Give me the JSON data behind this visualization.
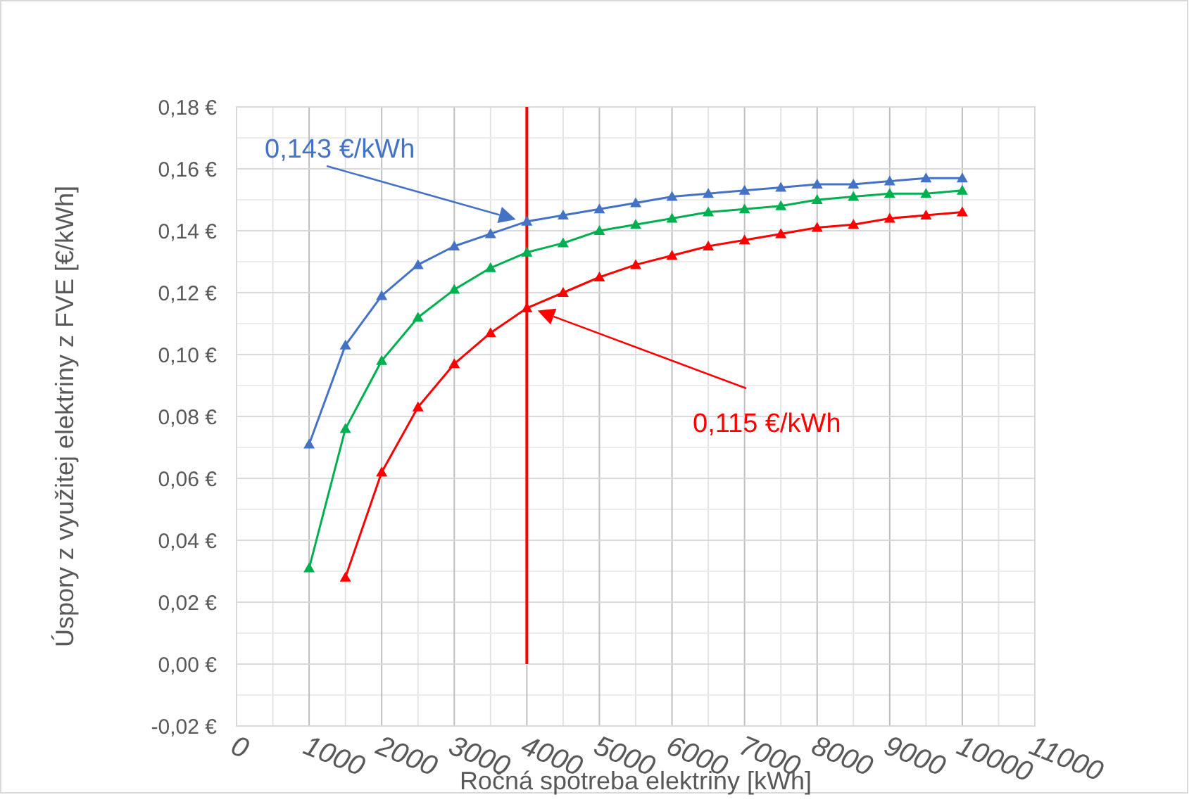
{
  "chart_data": {
    "type": "line",
    "xlabel": "Ročná spotreba elektriny [kWh]",
    "ylabel": "Úspory z využitej elektriny z FVE [€/kWh]",
    "x": [
      1000,
      1500,
      2000,
      2500,
      3000,
      3500,
      4000,
      4500,
      5000,
      5500,
      6000,
      6500,
      7000,
      7500,
      8000,
      8500,
      9000,
      9500,
      10000
    ],
    "series": [
      {
        "color": "#ff0000",
        "values": [
          null,
          0.028,
          0.062,
          0.083,
          0.097,
          0.107,
          0.115,
          0.12,
          0.125,
          0.129,
          0.132,
          0.135,
          0.137,
          0.139,
          0.141,
          0.142,
          0.144,
          0.145,
          0.146
        ]
      },
      {
        "color": "#00b050",
        "values": [
          0.031,
          0.076,
          0.098,
          0.112,
          0.121,
          0.128,
          0.133,
          0.136,
          0.14,
          0.142,
          0.144,
          0.146,
          0.147,
          0.148,
          0.15,
          0.151,
          0.152,
          0.152,
          0.153
        ]
      },
      {
        "color": "#4472c4",
        "values": [
          0.071,
          0.103,
          0.119,
          0.129,
          0.135,
          0.139,
          0.143,
          0.145,
          0.147,
          0.149,
          0.151,
          0.152,
          0.153,
          0.154,
          0.155,
          0.155,
          0.156,
          0.157,
          0.157
        ]
      }
    ],
    "xlim": [
      0,
      11000
    ],
    "xticks": [
      0,
      1000,
      2000,
      3000,
      4000,
      5000,
      6000,
      7000,
      8000,
      9000,
      10000,
      11000
    ],
    "ylim": [
      -0.02,
      0.18
    ],
    "yticks": [
      {
        "value": -0.02,
        "label": "-0,02 €"
      },
      {
        "value": 0,
        "label": "0,00 €"
      },
      {
        "value": 0.02,
        "label": "0,02 €"
      },
      {
        "value": 0.04,
        "label": "0,04 €"
      },
      {
        "value": 0.06,
        "label": "0,06 €"
      },
      {
        "value": 0.08,
        "label": "0,08 €"
      },
      {
        "value": 0.1,
        "label": "0,10 €"
      },
      {
        "value": 0.12,
        "label": "0,12 €"
      },
      {
        "value": 0.14,
        "label": "0,14 €"
      },
      {
        "value": 0.16,
        "label": "0,16 €"
      },
      {
        "value": 0.18,
        "label": "0,18 €"
      }
    ],
    "ref_lines": [
      {
        "axis": "x",
        "value": 4000,
        "color": "#ff0000"
      }
    ],
    "annotations": [
      "0,143 €/kWh",
      "0,115 €/kWh"
    ],
    "grid": true,
    "marker": "triangle",
    "line_style": "solid",
    "legend": false
  }
}
